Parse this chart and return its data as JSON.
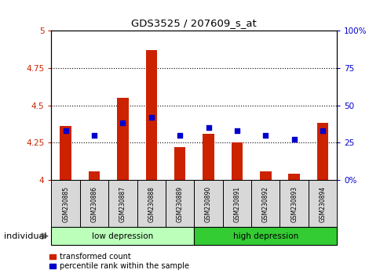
{
  "title": "GDS3525 / 207609_s_at",
  "categories": [
    "GSM230885",
    "GSM230886",
    "GSM230887",
    "GSM230888",
    "GSM230889",
    "GSM230890",
    "GSM230891",
    "GSM230892",
    "GSM230893",
    "GSM230894"
  ],
  "transformed_count": [
    4.36,
    4.06,
    4.55,
    4.87,
    4.22,
    4.31,
    4.25,
    4.06,
    4.04,
    4.38
  ],
  "percentile_rank": [
    33,
    30,
    38,
    42,
    30,
    35,
    33,
    30,
    27,
    33
  ],
  "ylim_left": [
    4.0,
    5.0
  ],
  "ylim_right": [
    0,
    100
  ],
  "yticks_left": [
    4.0,
    4.25,
    4.5,
    4.75,
    5.0
  ],
  "yticks_right": [
    0,
    25,
    50,
    75,
    100
  ],
  "ytick_labels_left": [
    "4",
    "4.25",
    "4.5",
    "4.75",
    "5"
  ],
  "ytick_labels_right": [
    "0%",
    "25",
    "50",
    "75",
    "100%"
  ],
  "group_labels": [
    "low depression",
    "high depression"
  ],
  "bar_color": "#cc2200",
  "dot_color": "#0000cc",
  "legend_items": [
    "transformed count",
    "percentile rank within the sample"
  ],
  "low_dep_color": "#bbffbb",
  "high_dep_color": "#33cc33",
  "xlabel": "individual",
  "label_box_color": "#d8d8d8",
  "bar_width": 0.4
}
